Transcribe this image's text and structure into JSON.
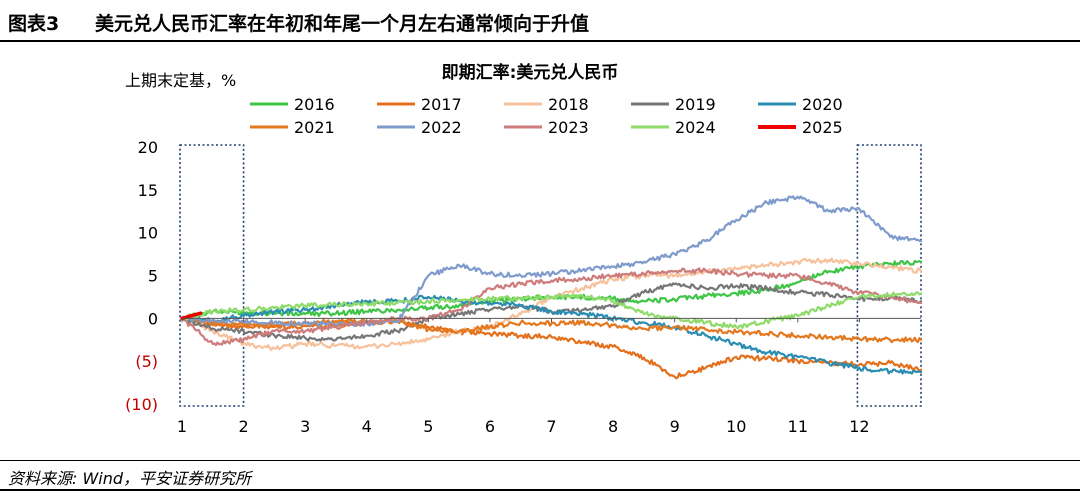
{
  "figure": {
    "number": "图表3",
    "title": "美元兑人民币汇率在年初和年尾一个月左右通常倾向于升值",
    "source": "资料来源: Wind，平安证券研究所"
  },
  "colors": {
    "2016": "#3ec545",
    "2017": "#e46f1c",
    "2018": "#f6c19b",
    "2019": "#767676",
    "2020": "#2a8db1",
    "2021": "#e3781f",
    "2022": "#7f9bcb",
    "2023": "#cd7b7b",
    "2024": "#8edb6a",
    "2025": "#ee0000",
    "negative_tick": "#c00000",
    "highlight_box": "#1f3d6d"
  },
  "chart_data": {
    "type": "line",
    "title": "即期汇率:美元兑人民币",
    "ylabel": "上期末定基，%",
    "xlabel": "",
    "x_ticks": [
      "1",
      "2",
      "3",
      "4",
      "5",
      "6",
      "7",
      "8",
      "9",
      "10",
      "11",
      "12"
    ],
    "xlim": [
      1,
      13
    ],
    "ylim": [
      -10,
      20
    ],
    "y_ticks": [
      {
        "value": 20,
        "label": "20"
      },
      {
        "value": 15,
        "label": "15"
      },
      {
        "value": 10,
        "label": "10"
      },
      {
        "value": 5,
        "label": "5"
      },
      {
        "value": 0,
        "label": "0"
      },
      {
        "value": -5,
        "label": "(5)"
      },
      {
        "value": -10,
        "label": "(10)"
      }
    ],
    "grid": false,
    "legend_position": "top",
    "highlight_ranges": [
      [
        1,
        2
      ],
      [
        12,
        13
      ]
    ],
    "series": [
      {
        "name": "2016",
        "x": [
          1,
          1.5,
          2,
          2.5,
          3,
          3.5,
          4,
          4.5,
          5,
          5.5,
          6,
          6.5,
          7,
          7.5,
          8,
          8.5,
          9,
          9.5,
          10,
          10.5,
          11,
          11.5,
          12,
          12.5,
          13
        ],
        "y": [
          0,
          0.8,
          0.7,
          0.6,
          0.5,
          0.6,
          0.8,
          1,
          1.2,
          1.5,
          2,
          2.3,
          2.5,
          2.5,
          2.3,
          2,
          2.2,
          2.6,
          2.9,
          3.3,
          4.2,
          5.5,
          6,
          6.4,
          6.6
        ]
      },
      {
        "name": "2017",
        "x": [
          1,
          1.5,
          2,
          2.5,
          3,
          3.5,
          4,
          4.5,
          5,
          5.5,
          6,
          6.5,
          7,
          7.5,
          8,
          8.5,
          9,
          9.5,
          10,
          10.5,
          11,
          11.5,
          12,
          12.5,
          13
        ],
        "y": [
          0,
          -0.8,
          -0.9,
          -1,
          -0.9,
          -0.8,
          -0.5,
          -0.4,
          -1,
          -1.6,
          -1.8,
          -2,
          -2.2,
          -2.8,
          -3.3,
          -4.6,
          -6.8,
          -5.8,
          -4.5,
          -4.7,
          -5,
          -5.2,
          -5.4,
          -5.2,
          -6
        ]
      },
      {
        "name": "2018",
        "x": [
          1,
          1.5,
          2,
          2.5,
          3,
          3.5,
          4,
          4.5,
          5,
          5.5,
          6,
          6.5,
          7,
          7.5,
          8,
          8.5,
          9,
          9.5,
          10,
          10.5,
          11,
          11.5,
          12,
          12.5,
          13
        ],
        "y": [
          0,
          -1.5,
          -3,
          -3.5,
          -3,
          -3.2,
          -3.3,
          -3,
          -2.5,
          -1.5,
          -1,
          0.5,
          2.5,
          3.5,
          4.5,
          5,
          5,
          5.4,
          5.8,
          6.2,
          6.6,
          6.8,
          6.4,
          6,
          5.5
        ]
      },
      {
        "name": "2019",
        "x": [
          1,
          1.5,
          2,
          2.5,
          3,
          3.5,
          4,
          4.5,
          5,
          5.5,
          6,
          6.5,
          7,
          7.5,
          8,
          8.5,
          9,
          9.5,
          10,
          10.5,
          11,
          11.5,
          12,
          12.5,
          13
        ],
        "y": [
          0,
          -1.2,
          -1.5,
          -2,
          -2.3,
          -2.5,
          -2,
          -1.5,
          0,
          0.5,
          1,
          1.5,
          0.8,
          1,
          1.5,
          3,
          4,
          3.5,
          3.8,
          3.5,
          3,
          2.8,
          2.2,
          2.4,
          2
        ]
      },
      {
        "name": "2020",
        "x": [
          1,
          1.5,
          2,
          2.5,
          3,
          3.5,
          4,
          4.5,
          5,
          5.5,
          6,
          6.5,
          7,
          7.5,
          8,
          8.5,
          9,
          9.5,
          10,
          10.5,
          11,
          11.5,
          12,
          12.5,
          13
        ],
        "y": [
          0,
          -0.3,
          0.3,
          0.8,
          1,
          1.5,
          2,
          2,
          2.5,
          2,
          1.8,
          1.5,
          0.8,
          0.5,
          0,
          -0.5,
          -1,
          -2,
          -3,
          -4,
          -4.5,
          -5.2,
          -5.8,
          -6.2,
          -6.3
        ]
      },
      {
        "name": "2021",
        "x": [
          1,
          1.5,
          2,
          2.5,
          3,
          3.5,
          4,
          4.5,
          5,
          5.5,
          6,
          6.5,
          7,
          7.5,
          8,
          8.5,
          9,
          9.5,
          10,
          10.5,
          11,
          11.5,
          12,
          12.5,
          13
        ],
        "y": [
          0,
          -0.5,
          -0.8,
          -0.8,
          -0.5,
          -0.3,
          -0.4,
          -0.3,
          -1.3,
          -1.5,
          -1,
          -0.5,
          -0.6,
          -0.5,
          -0.8,
          -1.2,
          -1,
          -1.3,
          -1.6,
          -1.8,
          -2,
          -2.2,
          -2.4,
          -2.5,
          -2.5
        ]
      },
      {
        "name": "2022",
        "x": [
          1,
          1.5,
          2,
          2.5,
          3,
          3.5,
          4,
          4.5,
          5,
          5.5,
          6,
          6.5,
          7,
          7.5,
          8,
          8.5,
          9,
          9.5,
          10,
          10.5,
          11,
          11.5,
          12,
          12.5,
          13
        ],
        "y": [
          0,
          -0.2,
          -0.4,
          -0.5,
          -0.6,
          -0.7,
          -0.6,
          -0.4,
          5,
          6.2,
          5.2,
          5,
          5.2,
          5.6,
          6,
          6.6,
          7.5,
          9,
          11.5,
          13.5,
          14.2,
          12.5,
          12.8,
          9.5,
          9
        ]
      },
      {
        "name": "2023",
        "x": [
          1,
          1.5,
          2,
          2.5,
          3,
          3.5,
          4,
          4.5,
          5,
          5.5,
          6,
          6.5,
          7,
          7.5,
          8,
          8.5,
          9,
          9.5,
          10,
          10.5,
          11,
          11.5,
          12,
          12.5,
          13
        ],
        "y": [
          0,
          -3,
          -2.5,
          -1.5,
          -1.5,
          -1,
          -0.5,
          0,
          0,
          1,
          3.5,
          4,
          4.4,
          4.6,
          5,
          5.2,
          5.5,
          5.6,
          5.2,
          5,
          5,
          4,
          3,
          2.5,
          1.8
        ]
      },
      {
        "name": "2024",
        "x": [
          1,
          1.5,
          2,
          2.5,
          3,
          3.5,
          4,
          4.5,
          5,
          5.5,
          6,
          6.5,
          7,
          7.5,
          8,
          8.5,
          9,
          9.5,
          10,
          10.5,
          11,
          11.5,
          12,
          12.5,
          13
        ],
        "y": [
          0,
          0.8,
          1,
          1.2,
          1.5,
          1.6,
          1.7,
          1.8,
          2,
          2.1,
          2.3,
          2.4,
          2.5,
          2.6,
          2,
          0.5,
          0,
          -0.5,
          -1,
          -0.3,
          0.3,
          1.5,
          2.5,
          2.7,
          2.9
        ]
      },
      {
        "name": "2025",
        "x": [
          1,
          1.1,
          1.2,
          1.3
        ],
        "y": [
          0,
          0.2,
          0.4,
          0.6
        ]
      }
    ]
  }
}
